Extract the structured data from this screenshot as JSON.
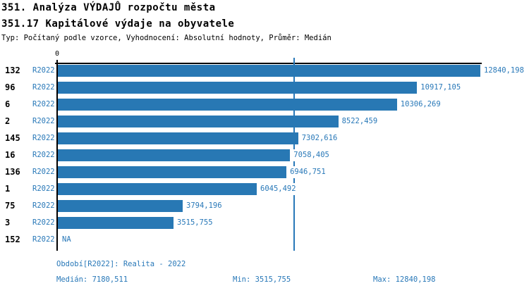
{
  "header": {
    "title": "351. Analýza VÝDAJŮ rozpočtu města",
    "subtitle": "351.17 Kapitálové výdaje na obyvatele",
    "meta": "Typ: Počítaný podle vzorce, Vyhodnocení: Absolutní hodnoty, Průměr: Medián"
  },
  "chart_data": {
    "type": "bar",
    "orientation": "horizontal",
    "title": "351.17 Kapitálové výdaje na obyvatele",
    "categories": [
      "132",
      "96",
      "6",
      "2",
      "145",
      "16",
      "136",
      "1",
      "75",
      "3",
      "152"
    ],
    "series_label": "R2022",
    "values": [
      12840.198,
      10917.105,
      10306.269,
      8522.459,
      7302.616,
      7058.405,
      6946.751,
      6045.492,
      3794.196,
      3515.755,
      null
    ],
    "value_labels": [
      "12840,198",
      "10917,105",
      "10306,269",
      "8522,459",
      "7302,616",
      "7058,405",
      "6946,751",
      "6045,492",
      "3794,196",
      "3515,755",
      "NA"
    ],
    "xlim": [
      0,
      12840.198
    ],
    "axis_zero_label": "0",
    "median": 7180.511,
    "grid": false,
    "legend": false
  },
  "footer": {
    "period": "Období[R2022]: Realita - 2022",
    "median": "Medián: 7180,511",
    "min": "Min: 3515,755",
    "max": "Max: 12840,198"
  },
  "colors": {
    "bar": "#2878B4",
    "accent_text": "#2878B8",
    "ink": "#000000",
    "background": "#FFFFFF"
  }
}
